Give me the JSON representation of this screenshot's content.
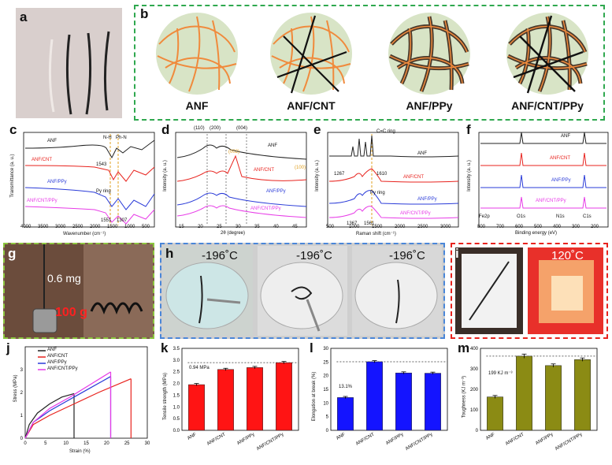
{
  "panel_letters": {
    "a": "a",
    "b": "b",
    "c": "c",
    "d": "d",
    "e": "e",
    "f": "f",
    "g": "g",
    "h": "h",
    "i": "i",
    "j": "j",
    "k": "k",
    "l": "l",
    "m": "m"
  },
  "panel_b": {
    "captions": [
      "ANF",
      "ANF/CNT",
      "ANF/PPy",
      "ANF/CNT/PPy"
    ]
  },
  "panel_c": {
    "ylabel": "Transmittance (a. u.)",
    "xlabel": "Wavenumber (cm⁻¹)",
    "xticks": [
      "4000",
      "3500",
      "3000",
      "2500",
      "2000",
      "1500",
      "1000",
      "500"
    ],
    "series": [
      "ANF",
      "ANF/CNT",
      "ANF/PPy",
      "ANF/CNT/PPy"
    ],
    "annotations": [
      "N-H",
      "Ph-N",
      "1543",
      "Py ring",
      "1551",
      "1307"
    ]
  },
  "panel_d": {
    "ylabel": "Intensity (a. u.)",
    "xlabel": "2θ (degree)",
    "xticks": [
      "15",
      "20",
      "25",
      "30",
      "35",
      "40",
      "45"
    ],
    "series": [
      "ANF",
      "ANF/CNT",
      "ANF/PPy",
      "ANF/CNT/PPy"
    ],
    "annotations": [
      "(110)",
      "(200)",
      "(004)",
      "(002)",
      "(100)"
    ]
  },
  "panel_e": {
    "ylabel": "Intensity (a. u.)",
    "xlabel": "Raman shift (cm⁻¹)",
    "xticks": [
      "500",
      "1000",
      "1500",
      "2000",
      "2500",
      "3000"
    ],
    "series": [
      "ANF",
      "ANF/CNT",
      "ANF/PPy",
      "ANF/CNT/PPy"
    ],
    "annotations": [
      "C=C ring",
      "1267",
      "1610",
      "Py ring",
      "1367",
      "1561"
    ]
  },
  "panel_f": {
    "ylabel": "Intensity (a. u.)",
    "xlabel": "Binding energy (eV)",
    "xticks": [
      "800",
      "700",
      "600",
      "500",
      "400",
      "300",
      "200"
    ],
    "series": [
      "ANF",
      "ANF/CNT",
      "ANF/PPy",
      "ANF/CNT/PPy"
    ],
    "peaks": [
      "Fe2p",
      "O1s",
      "N1s",
      "C1s"
    ]
  },
  "panel_g": {
    "weight": "0.6 mg",
    "load": "100 g"
  },
  "panel_h": {
    "temps": [
      "-196˚C",
      "-196˚C",
      "-196˚C"
    ]
  },
  "panel_i": {
    "temp": "120˚C"
  },
  "panel_j": {
    "ylabel": "Stress (MPa)",
    "xlabel": "Strain (%)",
    "xticks": [
      "0",
      "5",
      "10",
      "15",
      "20",
      "25",
      "30"
    ],
    "yticks": [
      "0",
      "1",
      "2",
      "3"
    ],
    "legend": [
      "ANF",
      "ANF/CNT",
      "ANF/PPy",
      "ANF/CNT/PPy"
    ]
  },
  "panel_k": {
    "ylabel": "Tensile strength (MPa)",
    "annotation": "0.94 MPa",
    "yticks": [
      "0.0",
      "0.5",
      "1.0",
      "1.5",
      "2.0",
      "2.5",
      "3.0",
      "3.5"
    ]
  },
  "panel_l": {
    "ylabel": "Elongation at break (%)",
    "annotation": "13.1%",
    "yticks": [
      "0",
      "5",
      "10",
      "15",
      "20",
      "25",
      "30"
    ]
  },
  "panel_m": {
    "ylabel": "Toughness (KJ m⁻³)",
    "annotation": "199 KJ m⁻³",
    "yticks": [
      "0",
      "100",
      "200",
      "300",
      "400"
    ]
  },
  "chart_data": [
    {
      "type": "line",
      "panel": "j",
      "xlabel": "Strain (%)",
      "ylabel": "Stress (MPa)",
      "xlim": [
        0,
        30
      ],
      "ylim": [
        0,
        4
      ],
      "series": [
        {
          "name": "ANF",
          "x": [
            0,
            1,
            3,
            6,
            9,
            12
          ],
          "y": [
            0,
            0.6,
            1.1,
            1.5,
            1.8,
            1.95
          ],
          "color": "#222222"
        },
        {
          "name": "ANF/CNT",
          "x": [
            0,
            2,
            6,
            12,
            18,
            26
          ],
          "y": [
            0,
            0.6,
            1.0,
            1.5,
            2.0,
            2.6
          ],
          "color": "#e8231e"
        },
        {
          "name": "ANF/PPy",
          "x": [
            0,
            2,
            6,
            11,
            16,
            21
          ],
          "y": [
            0,
            0.7,
            1.2,
            1.7,
            2.2,
            2.7
          ],
          "color": "#2a3bd8"
        },
        {
          "name": "ANF/CNT/PPy",
          "x": [
            0,
            2,
            6,
            11,
            16,
            21
          ],
          "y": [
            0,
            0.7,
            1.3,
            1.8,
            2.35,
            2.9
          ],
          "color": "#e73be7"
        }
      ]
    },
    {
      "type": "bar",
      "panel": "k",
      "ylabel": "Tensile strength (MPa)",
      "categories": [
        "ANF",
        "ANF/CNT",
        "ANF/PPy",
        "ANF/CNT/PPy"
      ],
      "values": [
        1.95,
        2.6,
        2.68,
        2.89
      ],
      "errors": [
        0.05,
        0.05,
        0.05,
        0.05
      ],
      "ylim": [
        0,
        3.5
      ],
      "color": "#ff1414"
    },
    {
      "type": "bar",
      "panel": "l",
      "ylabel": "Elongation at break (%)",
      "categories": [
        "ANF",
        "ANF/CNT",
        "ANF/PPy",
        "ANF/CNT/PPy"
      ],
      "values": [
        12,
        25.1,
        21,
        20.9
      ],
      "errors": [
        0.4,
        0.4,
        0.4,
        0.4
      ],
      "ylim": [
        0,
        30
      ],
      "color": "#1414ff"
    },
    {
      "type": "bar",
      "panel": "m",
      "ylabel": "Toughness (KJ m⁻³)",
      "categories": [
        "ANF",
        "ANF/CNT",
        "ANF/PPy",
        "ANF/CNT/PPy"
      ],
      "values": [
        163,
        362,
        316,
        345
      ],
      "errors": [
        7,
        10,
        8,
        8
      ],
      "ylim": [
        0,
        400
      ],
      "color": "#8b8b14"
    }
  ]
}
